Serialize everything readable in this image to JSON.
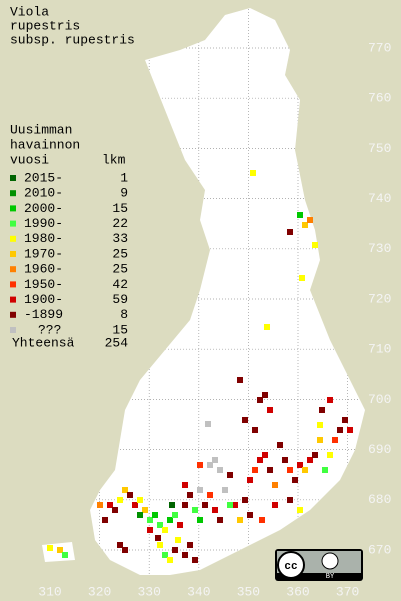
{
  "title": [
    "Viola",
    "rupestris",
    "subsp. rupestris"
  ],
  "legend": {
    "header": [
      "Uusimman",
      "havainnon",
      "vuosi"
    ],
    "count_header": "lkm",
    "rows": [
      {
        "label": "2015-",
        "count": 1,
        "color": "#006400"
      },
      {
        "label": "2010-",
        "count": 9,
        "color": "#009000"
      },
      {
        "label": "2000-",
        "count": 15,
        "color": "#00c800"
      },
      {
        "label": "1990-",
        "count": 22,
        "color": "#40ff40"
      },
      {
        "label": "1980-",
        "count": 33,
        "color": "#ffff00"
      },
      {
        "label": "1970-",
        "count": 25,
        "color": "#ffc800"
      },
      {
        "label": "1960-",
        "count": 25,
        "color": "#ff8000"
      },
      {
        "label": "1950-",
        "count": 42,
        "color": "#ff3000"
      },
      {
        "label": "1900-",
        "count": 59,
        "color": "#d00000"
      },
      {
        "label": "-1899",
        "count": 8,
        "color": "#800000"
      },
      {
        "label": "???",
        "count": 15,
        "color": "#c0c0c0"
      }
    ],
    "total_label": "Yhteensä",
    "total": 254
  },
  "y_labels": [
    770,
    760,
    750,
    740,
    730,
    720,
    710,
    700,
    690,
    680,
    670
  ],
  "x_labels": [
    310,
    320,
    330,
    340,
    350,
    360,
    370
  ]
}
